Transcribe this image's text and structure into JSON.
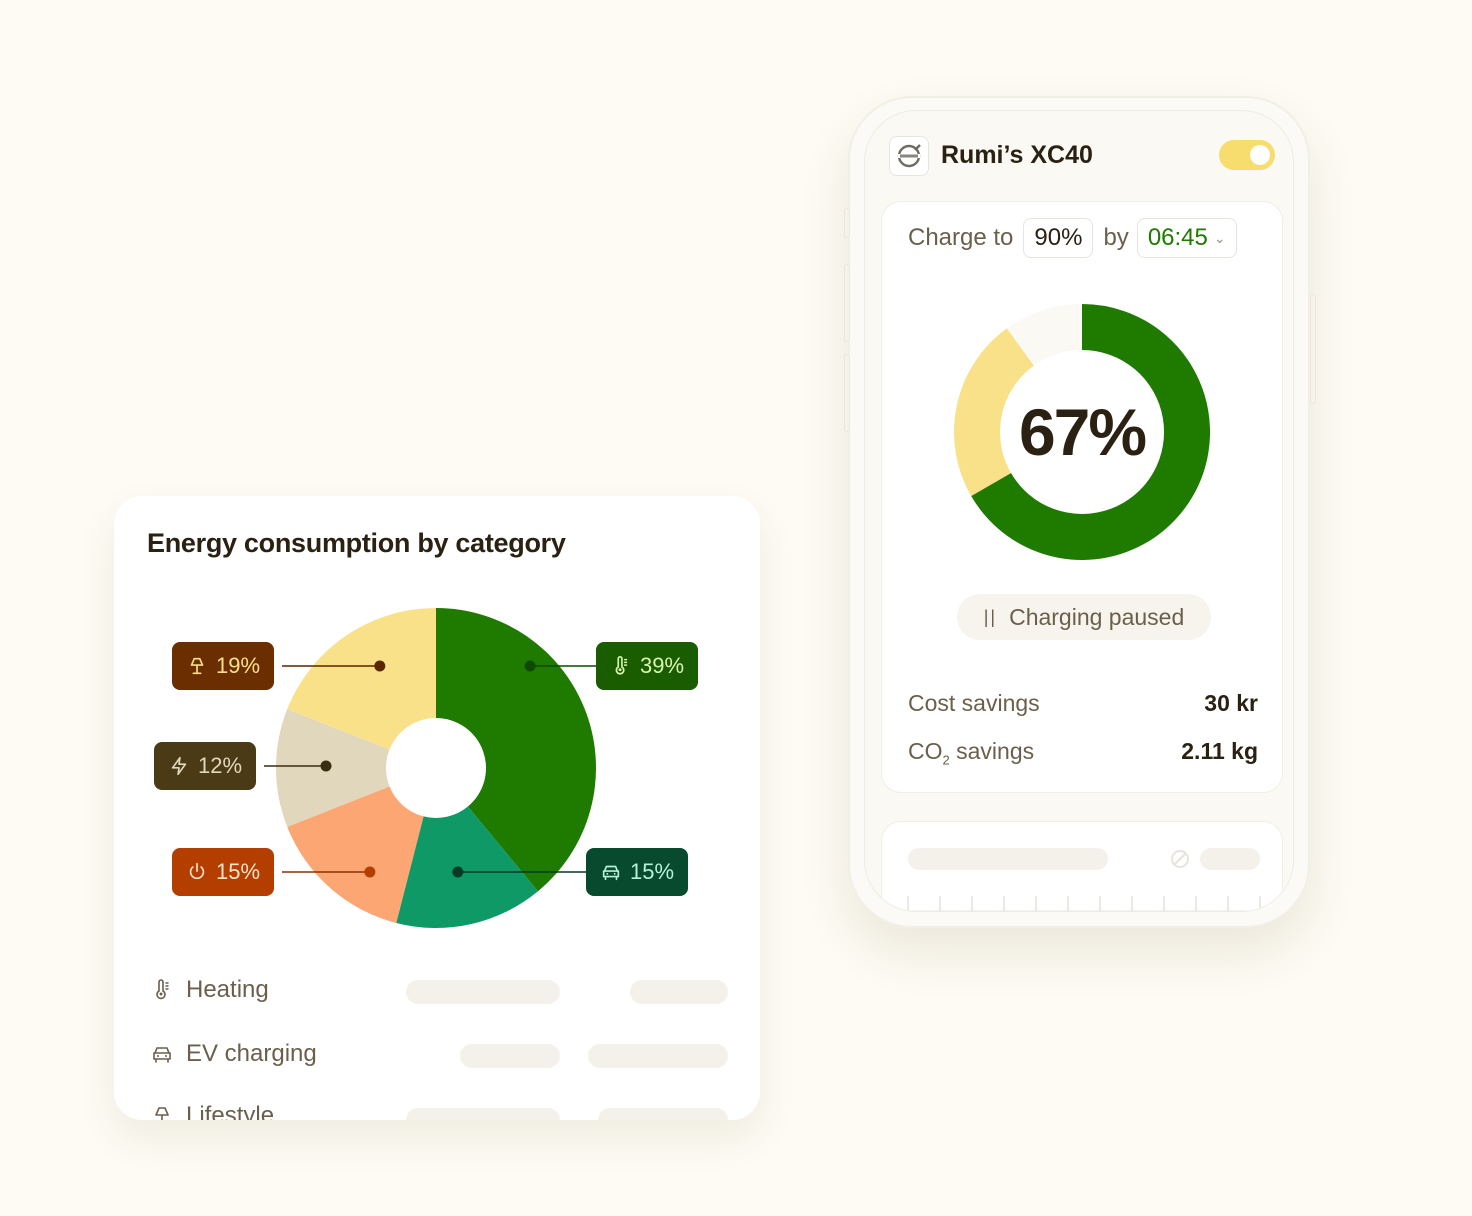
{
  "vehicle": {
    "name": "Rumi’s XC40",
    "logo_icon": "volvo-logo-icon",
    "charging_enabled": true
  },
  "charge": {
    "label_prefix": "Charge to",
    "target": "90%",
    "label_by": "by",
    "time": "06:45",
    "current_percent_label": "67%",
    "status_label": "Charging paused",
    "colors": {
      "charged": "#1f7a00",
      "projected": "#f9e18a",
      "remaining": "#fbf9f3"
    }
  },
  "savings": {
    "cost_label": "Cost savings",
    "cost_value": "30 kr",
    "co2_label_main": "CO",
    "co2_label_sub": "2",
    "co2_label_rest": " savings",
    "co2_value": "2.11 kg"
  },
  "energy": {
    "title": "Energy consumption by category",
    "legend": [
      {
        "label": "Heating",
        "icon": "thermometer-icon"
      },
      {
        "label": "EV charging",
        "icon": "car-icon"
      },
      {
        "label": "Lifestyle",
        "icon": "lamp-icon"
      }
    ]
  },
  "chart_data": {
    "type": "pie",
    "slices": [
      {
        "label": "39%",
        "value": 39,
        "icon": "thermometer-icon",
        "color": "#1f7a00"
      },
      {
        "label": "15%",
        "value": 15,
        "icon": "car-icon",
        "color": "#0f9966"
      },
      {
        "label": "15%",
        "value": 15,
        "icon": "power-icon",
        "color": "#fba673"
      },
      {
        "label": "12%",
        "value": 12,
        "icon": "bolt-icon",
        "color": "#e0d7bd"
      },
      {
        "label": "19%",
        "value": 19,
        "icon": "lamp-icon",
        "color": "#f9e18a"
      }
    ]
  }
}
